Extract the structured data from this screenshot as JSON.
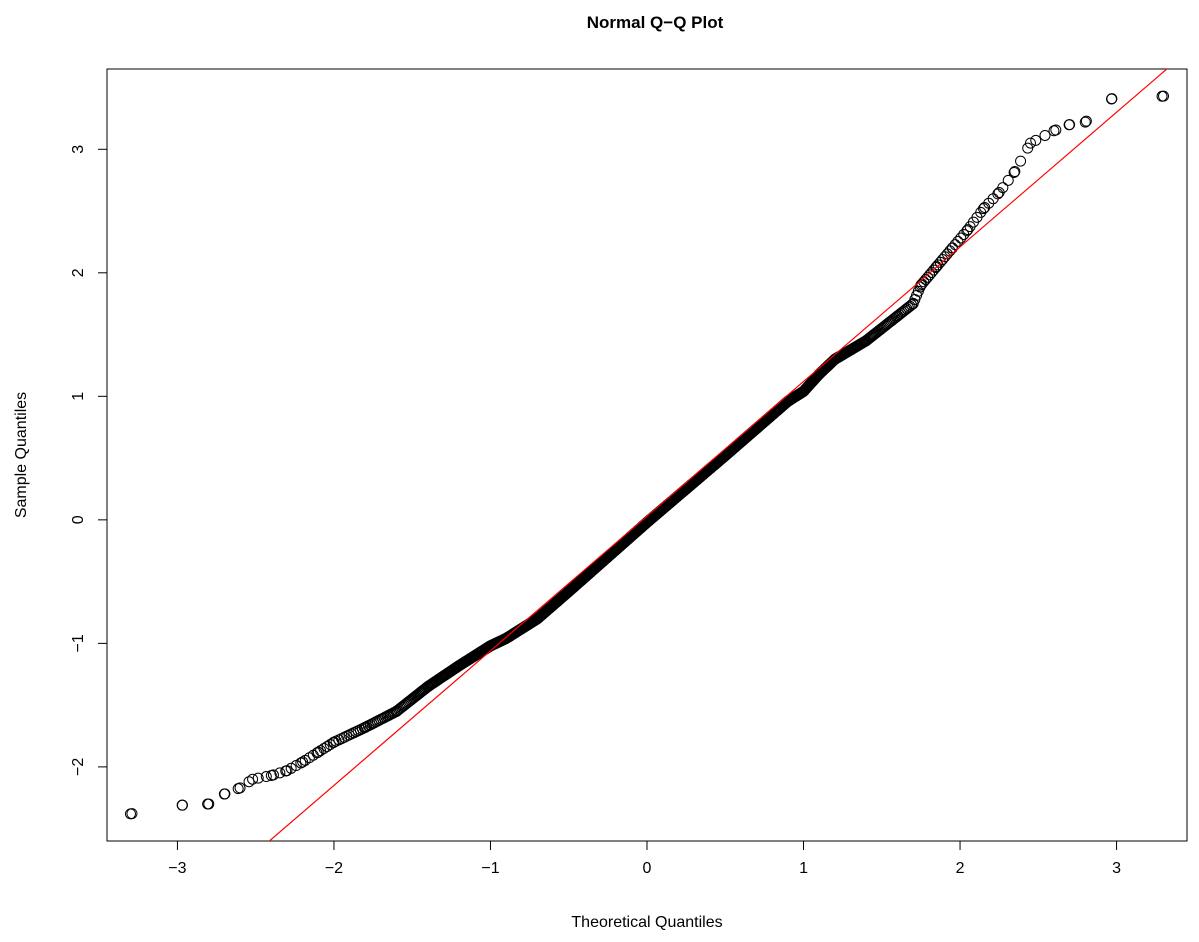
{
  "chart_data": {
    "type": "scatter",
    "title": "Normal Q−Q Plot",
    "xlabel": "Theoretical Quantiles",
    "ylabel": "Sample Quantiles",
    "xlim": [
      -3.45,
      3.45
    ],
    "ylim": [
      -2.6,
      3.65
    ],
    "x_ticks": [
      -3,
      -2,
      -1,
      0,
      1,
      2,
      3
    ],
    "x_tick_labels": [
      "−3",
      "−2",
      "−1",
      "0",
      "1",
      "2",
      "3"
    ],
    "y_ticks": [
      -2,
      -1,
      0,
      1,
      2,
      3
    ],
    "y_tick_labels": [
      "−2",
      "−1",
      "0",
      "1",
      "2",
      "3"
    ],
    "grid": false,
    "legend": "none",
    "reference_line": {
      "intercept": 0.03,
      "slope": 1.09,
      "color": "#FF0000"
    },
    "marker": {
      "shape": "open-circle",
      "color": "#000000"
    },
    "series": [
      {
        "n_points": 1000,
        "quantile_anchors": [
          [
            -3.3,
            -2.38
          ],
          [
            -2.97,
            -2.31
          ],
          [
            -2.8,
            -2.3
          ],
          [
            -2.7,
            -2.22
          ],
          [
            -2.6,
            -2.17
          ],
          [
            -2.52,
            -2.1
          ],
          [
            -2.4,
            -2.07
          ],
          [
            -2.3,
            -2.03
          ],
          [
            -2.2,
            -1.96
          ],
          [
            -2.1,
            -1.88
          ],
          [
            -2.0,
            -1.8
          ],
          [
            -1.8,
            -1.68
          ],
          [
            -1.6,
            -1.55
          ],
          [
            -1.4,
            -1.35
          ],
          [
            -1.2,
            -1.18
          ],
          [
            -1.0,
            -1.02
          ],
          [
            -0.9,
            -0.96
          ],
          [
            -0.7,
            -0.8
          ],
          [
            -0.5,
            -0.58
          ],
          [
            -0.25,
            -0.3
          ],
          [
            0.0,
            -0.02
          ],
          [
            0.25,
            0.25
          ],
          [
            0.5,
            0.52
          ],
          [
            0.7,
            0.74
          ],
          [
            0.9,
            0.96
          ],
          [
            1.0,
            1.04
          ],
          [
            1.1,
            1.18
          ],
          [
            1.2,
            1.3
          ],
          [
            1.4,
            1.45
          ],
          [
            1.6,
            1.65
          ],
          [
            1.7,
            1.75
          ],
          [
            1.75,
            1.9
          ],
          [
            1.85,
            2.05
          ],
          [
            1.95,
            2.2
          ],
          [
            2.05,
            2.35
          ],
          [
            2.15,
            2.52
          ],
          [
            2.25,
            2.65
          ],
          [
            2.35,
            2.82
          ],
          [
            2.45,
            3.05
          ],
          [
            2.6,
            3.15
          ],
          [
            2.7,
            3.2
          ],
          [
            2.8,
            3.22
          ],
          [
            2.97,
            3.41
          ],
          [
            3.3,
            3.43
          ]
        ]
      }
    ]
  }
}
